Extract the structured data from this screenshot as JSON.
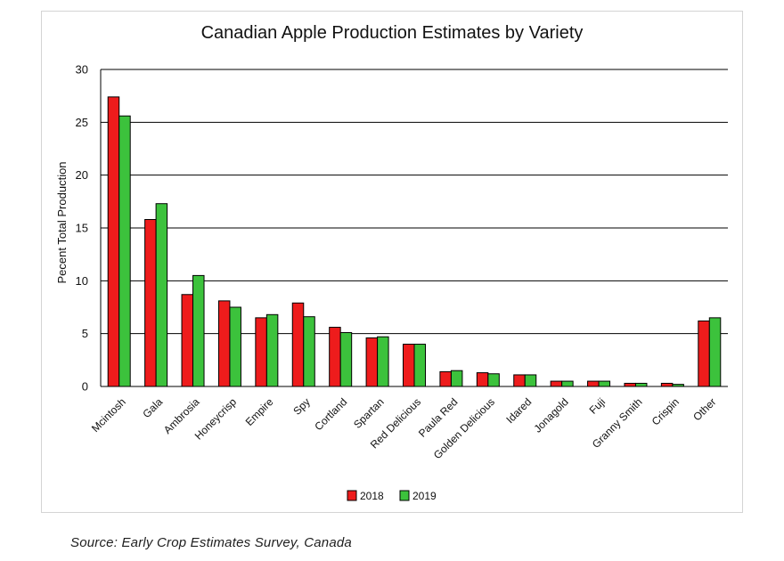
{
  "source_note": "Source: Early Crop Estimates Survey, Canada",
  "chart_data": {
    "type": "bar",
    "title": "Canadian Apple Production Estimates by Variety",
    "xlabel": "",
    "ylabel": "Pecent Total Production",
    "ylim": [
      0,
      30
    ],
    "yticks": [
      0,
      5,
      10,
      15,
      20,
      25,
      30
    ],
    "grid": true,
    "legend_position": "bottom-center",
    "categories": [
      "Mcintosh",
      "Gala",
      "Ambrosia",
      "Honeycrisp",
      "Empire",
      "Spy",
      "Cortland",
      "Spartan",
      "Red Delicious",
      "Paula Red",
      "Golden Delicious",
      "Idared",
      "Jonagold",
      "Fuji",
      "Granny Smith",
      "Crispin",
      "Other"
    ],
    "series": [
      {
        "name": "2018",
        "color": "#ee1c1c",
        "values": [
          27.4,
          15.8,
          8.7,
          8.1,
          6.5,
          7.9,
          5.6,
          4.6,
          4.0,
          1.4,
          1.3,
          1.1,
          0.5,
          0.5,
          0.3,
          0.3,
          6.2
        ]
      },
      {
        "name": "2019",
        "color": "#3cc23c",
        "values": [
          25.6,
          17.3,
          10.5,
          7.5,
          6.8,
          6.6,
          5.1,
          4.7,
          4.0,
          1.5,
          1.2,
          1.1,
          0.5,
          0.5,
          0.3,
          0.2,
          6.5
        ]
      }
    ]
  }
}
